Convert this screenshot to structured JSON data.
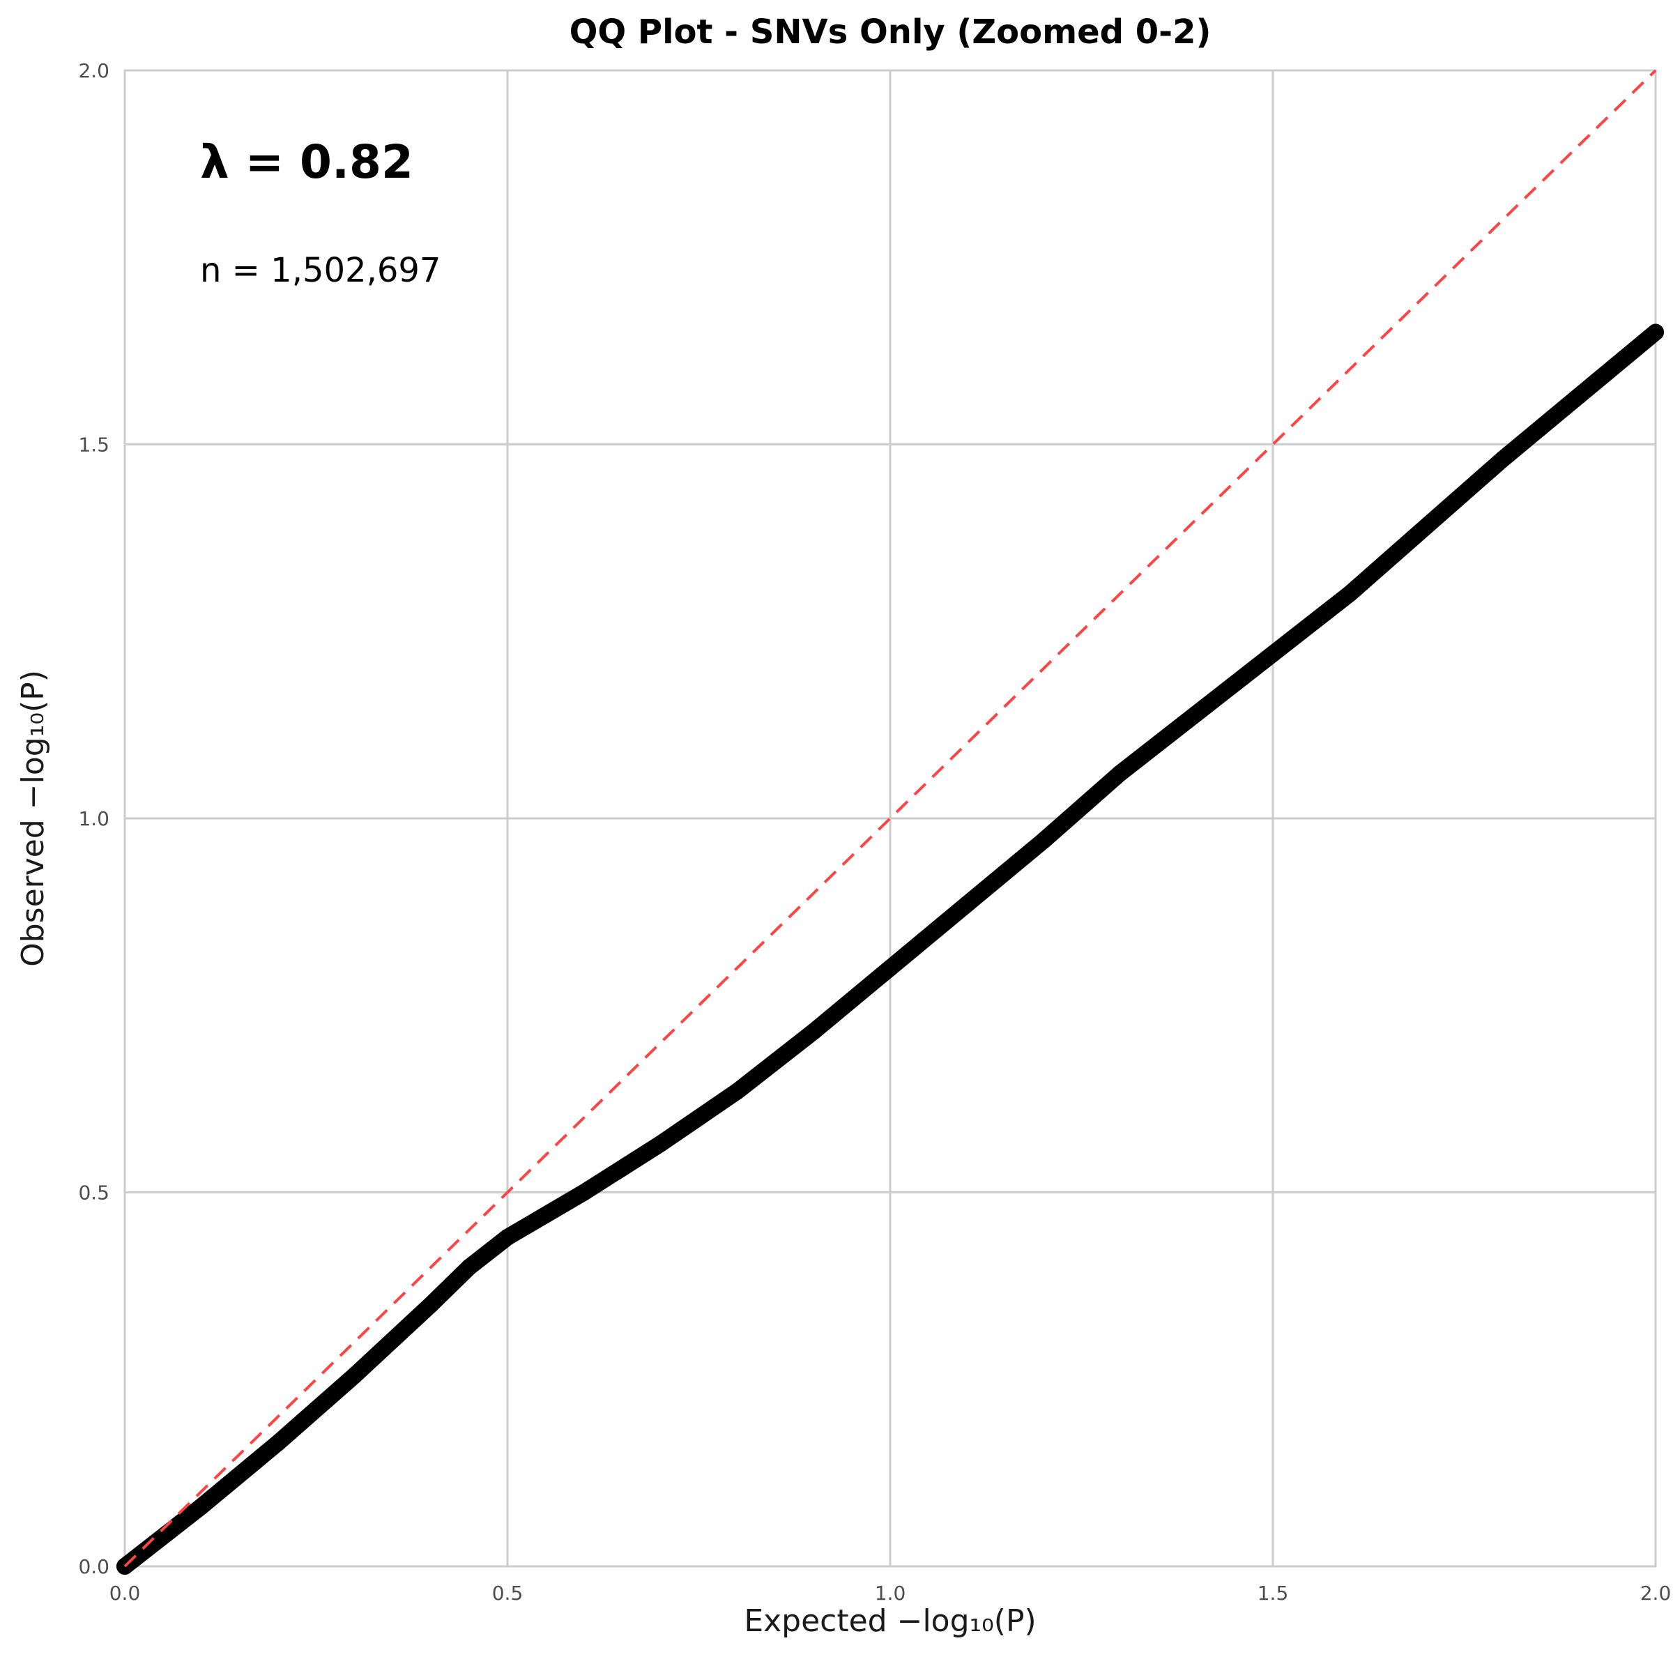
{
  "chart_data": {
    "type": "scatter",
    "title": "QQ Plot - SNVs Only (Zoomed 0-2)",
    "xlabel": "Expected −log₁₀(P)",
    "ylabel": "Observed −log₁₀(P)",
    "xlim": [
      0,
      2
    ],
    "ylim": [
      0,
      2
    ],
    "x_ticks": [
      "0.0",
      "0.5",
      "1.0",
      "1.5",
      "2.0"
    ],
    "y_ticks": [
      "0.0",
      "0.5",
      "1.0",
      "1.5",
      "2.0"
    ],
    "grid": true,
    "annotations": {
      "lambda": "λ = 0.82",
      "n": "n = 1,502,697"
    },
    "reference_line": {
      "style": "dashed",
      "color": "#ff4444",
      "from": [
        0,
        0
      ],
      "to": [
        2,
        2
      ]
    },
    "series": [
      {
        "color": "#000000",
        "x": [
          0,
          0.1,
          0.2,
          0.3,
          0.4,
          0.45,
          0.5,
          0.6,
          0.7,
          0.8,
          0.9,
          1.0,
          1.1,
          1.2,
          1.3,
          1.4,
          1.5,
          1.6,
          1.7,
          1.8,
          1.9,
          2.0
        ],
        "y": [
          0,
          0.08,
          0.165,
          0.255,
          0.35,
          0.4,
          0.44,
          0.5,
          0.565,
          0.635,
          0.715,
          0.8,
          0.885,
          0.97,
          1.06,
          1.14,
          1.22,
          1.3,
          1.39,
          1.48,
          1.565,
          1.65
        ]
      }
    ]
  }
}
